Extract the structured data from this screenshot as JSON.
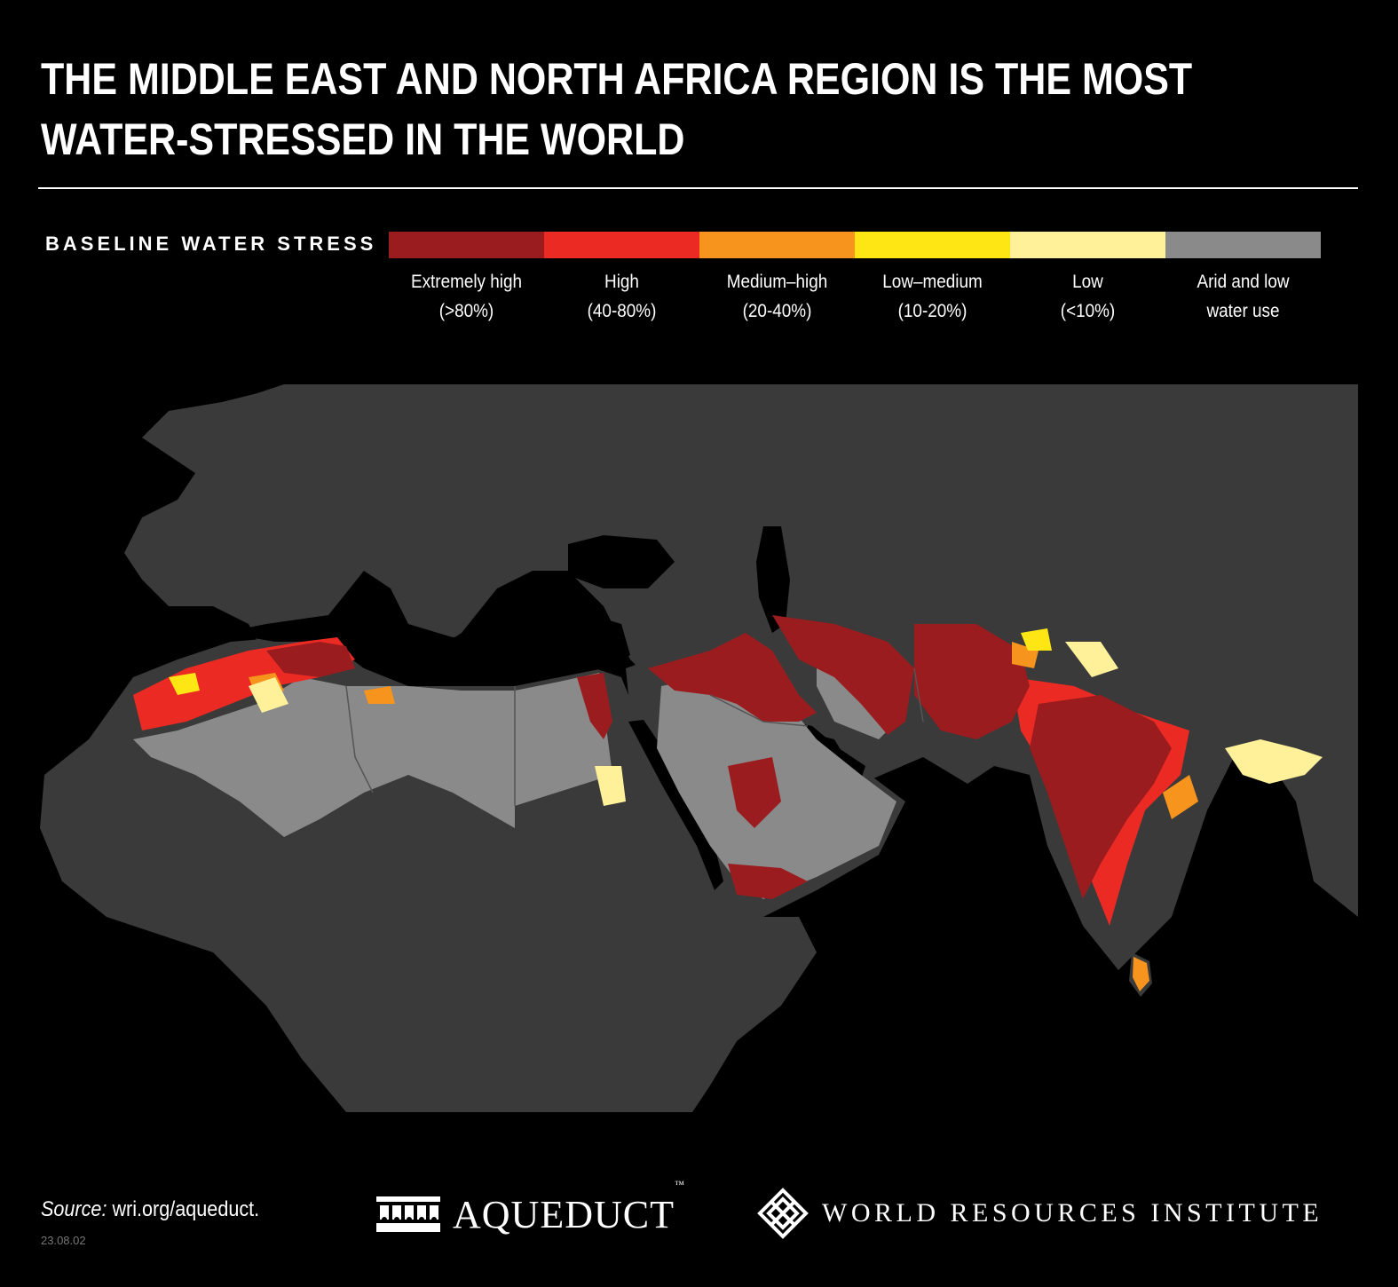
{
  "title_lines": [
    "THE MIDDLE EAST AND NORTH AFRICA REGION IS THE MOST",
    "WATER-STRESSED IN THE WORLD"
  ],
  "legend": {
    "title": "BASELINE WATER STRESS",
    "items": [
      {
        "line1": "Extremely high",
        "line2": "(>80%)",
        "color": "#9b1c1f"
      },
      {
        "line1": "High",
        "line2": "(40-80%)",
        "color": "#ec2a24"
      },
      {
        "line1": "Medium–high",
        "line2": "(20-40%)",
        "color": "#f7941d"
      },
      {
        "line1": "Low–medium",
        "line2": "(10-20%)",
        "color": "#fde613"
      },
      {
        "line1": "Low",
        "line2": "(<10%)",
        "color": "#fef19a"
      },
      {
        "line1": "Arid and low",
        "line2": "water use",
        "color": "#8a8a8a"
      }
    ]
  },
  "colors": {
    "land": "#3a3a3a",
    "water": "#000000",
    "borders": "#555555"
  },
  "footer": {
    "source_label": "Source:",
    "source_value": "wri.org/aqueduct.",
    "date": "23.08.02",
    "aqueduct": "AQUEDUCT",
    "tm": "™",
    "wri": "WORLD RESOURCES INSTITUTE"
  }
}
